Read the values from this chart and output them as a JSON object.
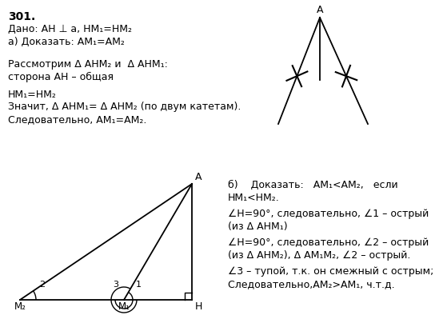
{
  "bg_color": "#ffffff",
  "text_color": "#000000",
  "title": "301.",
  "line1": "Дано: AH ⊥ a, HM₁=HM₂",
  "line2": "a) Доказать: AM₁=AM₂",
  "line3": "Рассмотрим Δ AHM₂ и  Δ AHM₁:",
  "line4": "сторона AH – общая",
  "line5": "HM₁=HM₂",
  "line6": "Значит, Δ AHM₁= Δ AHM₂ (по двум катетам).",
  "line7": "Следовательно, AM₁=AM₂.",
  "b_line1": "б)    Доказать:   AM₁<AM₂,   если",
  "b_line2": "HM₁<HM₂.",
  "b_line3": "∠H=90°, следовательно, ∠1 – острый",
  "b_line4": "(из Δ AHM₁)",
  "b_line5": "∠H=90°, следовательно, ∠2 – острый",
  "b_line6": "(из Δ AHM₂), Δ AM₁M₂, ∠2 – острый.",
  "b_line7": "∠3 – тупой, т.к. он смежный с острым;",
  "b_line8": "Следовательно,AM₂>AM₁, ч.т.д."
}
